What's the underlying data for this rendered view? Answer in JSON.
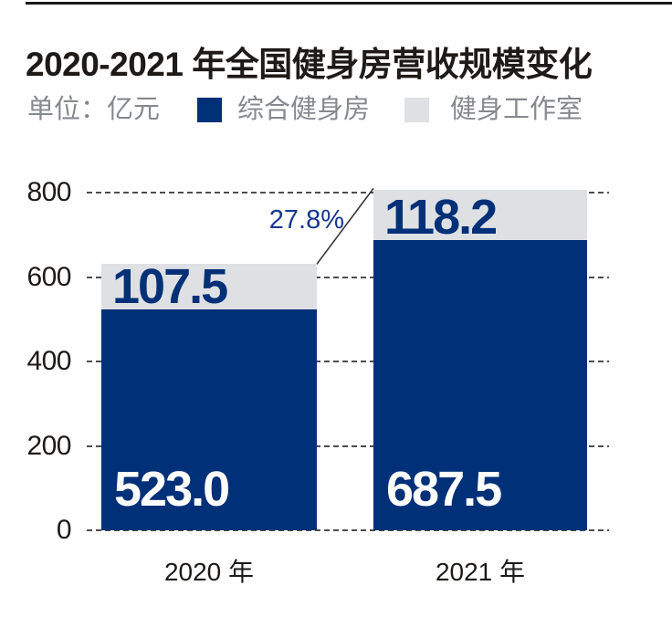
{
  "title": "2020-2021 年全国健身房营收规模变化",
  "unit_label": "单位：亿元",
  "colors": {
    "primary_navy": "#003077",
    "secondary_gray": "#dee0e4",
    "annotation_blue": "#17378f",
    "muted_text": "#85898d",
    "text": "#1d1a17",
    "grid": "#4d4d4d"
  },
  "legend": {
    "items": [
      {
        "label": "综合健身房",
        "color": "#003077"
      },
      {
        "label": "健身工作室",
        "color": "#dee0e4"
      }
    ]
  },
  "chart_data": {
    "type": "bar",
    "stacked": true,
    "title": "2020-2021 年全国健身房营收规模变化",
    "unit": "亿元",
    "categories": [
      "2020 年",
      "2021 年"
    ],
    "series": [
      {
        "name": "综合健身房",
        "values": [
          523.0,
          687.5
        ],
        "labels": [
          "523.0",
          "687.5"
        ],
        "color": "#003077",
        "label_color": "#ffffff"
      },
      {
        "name": "健身工作室",
        "values": [
          107.5,
          118.2
        ],
        "labels": [
          "107.5",
          "118.2"
        ],
        "color": "#dee0e4",
        "label_color": "#003077"
      }
    ],
    "ylim": [
      0,
      800
    ],
    "yticks": [
      0,
      200,
      400,
      600,
      800
    ],
    "grid": "dashed-horizontal",
    "legend_position": "top",
    "annotation": {
      "text": "27.8%"
    }
  }
}
